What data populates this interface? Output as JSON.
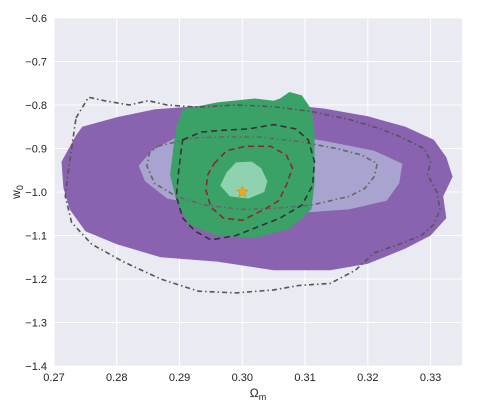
{
  "chart_data": {
    "type": "contour",
    "title": "",
    "xlabel": "Ωm",
    "ylabel": "w0",
    "xlim": [
      0.27,
      0.335
    ],
    "ylim": [
      -1.4,
      -0.6
    ],
    "xticks": [
      "0.27",
      "0.28",
      "0.29",
      "0.30",
      "0.31",
      "0.32",
      "0.33"
    ],
    "yticks": [
      "−0.6",
      "−0.7",
      "−0.8",
      "−0.9",
      "−1.0",
      "−1.1",
      "−1.2",
      "−1.3",
      "−1.4"
    ],
    "grid": true,
    "background": "#eaeaf2",
    "legend": "none",
    "fiducial_marker": {
      "x": 0.3,
      "y": -1.0,
      "symbol": "star",
      "color": "#f0a818"
    },
    "series": [
      {
        "style": "filled",
        "color": "#8a63b0",
        "level": "outer",
        "points": [
          [
            0.2735,
            -0.87
          ],
          [
            0.2745,
            -0.85
          ],
          [
            0.28,
            -0.828
          ],
          [
            0.286,
            -0.81
          ],
          [
            0.295,
            -0.8
          ],
          [
            0.305,
            -0.796
          ],
          [
            0.313,
            -0.808
          ],
          [
            0.32,
            -0.826
          ],
          [
            0.326,
            -0.85
          ],
          [
            0.3305,
            -0.88
          ],
          [
            0.3325,
            -0.92
          ],
          [
            0.3335,
            -0.965
          ],
          [
            0.332,
            -1.01
          ],
          [
            0.3325,
            -1.06
          ],
          [
            0.33,
            -1.1
          ],
          [
            0.326,
            -1.13
          ],
          [
            0.32,
            -1.165
          ],
          [
            0.314,
            -1.18
          ],
          [
            0.305,
            -1.18
          ],
          [
            0.296,
            -1.16
          ],
          [
            0.287,
            -1.15
          ],
          [
            0.28,
            -1.12
          ],
          [
            0.275,
            -1.09
          ],
          [
            0.2725,
            -1.04
          ],
          [
            0.2715,
            -0.99
          ],
          [
            0.2712,
            -0.93
          ]
        ]
      },
      {
        "style": "filled",
        "color": "#a9a3d0",
        "level": "inner",
        "points": [
          [
            0.2855,
            -0.905
          ],
          [
            0.29,
            -0.87
          ],
          [
            0.298,
            -0.86
          ],
          [
            0.306,
            -0.865
          ],
          [
            0.314,
            -0.885
          ],
          [
            0.321,
            -0.905
          ],
          [
            0.3255,
            -0.935
          ],
          [
            0.325,
            -0.98
          ],
          [
            0.323,
            -1.02
          ],
          [
            0.317,
            -1.04
          ],
          [
            0.307,
            -1.05
          ],
          [
            0.297,
            -1.04
          ],
          [
            0.288,
            -1.015
          ],
          [
            0.2845,
            -0.975
          ],
          [
            0.2835,
            -0.94
          ]
        ]
      },
      {
        "style": "filled",
        "color": "#3aa267",
        "level": "outer",
        "points": [
          [
            0.2895,
            -0.85
          ],
          [
            0.2905,
            -0.81
          ],
          [
            0.296,
            -0.794
          ],
          [
            0.302,
            -0.785
          ],
          [
            0.305,
            -0.79
          ],
          [
            0.306,
            -0.785
          ],
          [
            0.3075,
            -0.77
          ],
          [
            0.3095,
            -0.778
          ],
          [
            0.311,
            -0.81
          ],
          [
            0.3115,
            -0.86
          ],
          [
            0.3115,
            -0.92
          ],
          [
            0.3115,
            -0.98
          ],
          [
            0.311,
            -1.04
          ],
          [
            0.3075,
            -1.085
          ],
          [
            0.302,
            -1.105
          ],
          [
            0.296,
            -1.1
          ],
          [
            0.2915,
            -1.075
          ],
          [
            0.2895,
            -1.02
          ],
          [
            0.2885,
            -0.96
          ],
          [
            0.289,
            -0.9
          ]
        ]
      },
      {
        "style": "filled",
        "color": "#8fd2b0",
        "level": "inner",
        "points": [
          [
            0.2975,
            -0.955
          ],
          [
            0.299,
            -0.932
          ],
          [
            0.3015,
            -0.93
          ],
          [
            0.303,
            -0.945
          ],
          [
            0.304,
            -0.975
          ],
          [
            0.3035,
            -1.0
          ],
          [
            0.301,
            -1.015
          ],
          [
            0.298,
            -1.01
          ],
          [
            0.2965,
            -0.985
          ]
        ]
      },
      {
        "style": "dash-dot",
        "color": "#555555",
        "level": "outer",
        "points": [
          [
            0.2735,
            -0.83
          ],
          [
            0.2755,
            -0.782
          ],
          [
            0.278,
            -0.79
          ],
          [
            0.282,
            -0.8
          ],
          [
            0.285,
            -0.79
          ],
          [
            0.288,
            -0.8
          ],
          [
            0.293,
            -0.805
          ],
          [
            0.299,
            -0.8
          ],
          [
            0.305,
            -0.804
          ],
          [
            0.311,
            -0.815
          ],
          [
            0.317,
            -0.833
          ],
          [
            0.322,
            -0.855
          ],
          [
            0.325,
            -0.872
          ],
          [
            0.329,
            -0.9
          ],
          [
            0.33,
            -0.93
          ],
          [
            0.3295,
            -0.96
          ],
          [
            0.331,
            -1.0
          ],
          [
            0.3315,
            -1.04
          ],
          [
            0.3305,
            -1.075
          ],
          [
            0.3285,
            -1.1
          ],
          [
            0.325,
            -1.12
          ],
          [
            0.321,
            -1.14
          ],
          [
            0.318,
            -1.18
          ],
          [
            0.314,
            -1.21
          ],
          [
            0.309,
            -1.215
          ],
          [
            0.305,
            -1.225
          ],
          [
            0.299,
            -1.232
          ],
          [
            0.293,
            -1.228
          ],
          [
            0.287,
            -1.2
          ],
          [
            0.281,
            -1.16
          ],
          [
            0.276,
            -1.12
          ],
          [
            0.2728,
            -1.07
          ],
          [
            0.2718,
            -1.01
          ],
          [
            0.2722,
            -0.96
          ],
          [
            0.2728,
            -0.9
          ],
          [
            0.2732,
            -0.86
          ]
        ]
      },
      {
        "style": "dash-dot",
        "color": "#666666",
        "level": "inner",
        "points": [
          [
            0.2865,
            -0.895
          ],
          [
            0.292,
            -0.876
          ],
          [
            0.297,
            -0.873
          ],
          [
            0.303,
            -0.874
          ],
          [
            0.309,
            -0.884
          ],
          [
            0.315,
            -0.9
          ],
          [
            0.319,
            -0.915
          ],
          [
            0.3215,
            -0.935
          ],
          [
            0.321,
            -0.965
          ],
          [
            0.3195,
            -0.992
          ],
          [
            0.317,
            -1.01
          ],
          [
            0.311,
            -1.03
          ],
          [
            0.305,
            -1.038
          ],
          [
            0.3,
            -1.04
          ],
          [
            0.294,
            -1.03
          ],
          [
            0.2895,
            -1.01
          ],
          [
            0.286,
            -0.98
          ],
          [
            0.2848,
            -0.94
          ],
          [
            0.2852,
            -0.91
          ]
        ]
      },
      {
        "style": "dashed",
        "color": "#333333",
        "level": "outer",
        "points": [
          [
            0.2905,
            -0.88
          ],
          [
            0.2935,
            -0.862
          ],
          [
            0.297,
            -0.858
          ],
          [
            0.301,
            -0.855
          ],
          [
            0.305,
            -0.845
          ],
          [
            0.3085,
            -0.855
          ],
          [
            0.3105,
            -0.88
          ],
          [
            0.3115,
            -0.93
          ],
          [
            0.3112,
            -0.985
          ],
          [
            0.3095,
            -1.03
          ],
          [
            0.306,
            -1.06
          ],
          [
            0.3025,
            -1.08
          ],
          [
            0.299,
            -1.1
          ],
          [
            0.295,
            -1.11
          ],
          [
            0.2925,
            -1.09
          ],
          [
            0.2905,
            -1.06
          ],
          [
            0.2895,
            -1.01
          ],
          [
            0.2898,
            -0.96
          ],
          [
            0.2902,
            -0.91
          ]
        ]
      },
      {
        "style": "dashed",
        "color": "#8b2a2a",
        "level": "inner",
        "points": [
          [
            0.2955,
            -0.935
          ],
          [
            0.2975,
            -0.905
          ],
          [
            0.3005,
            -0.895
          ],
          [
            0.3045,
            -0.895
          ],
          [
            0.307,
            -0.915
          ],
          [
            0.308,
            -0.945
          ],
          [
            0.307,
            -0.985
          ],
          [
            0.3058,
            -1.02
          ],
          [
            0.3035,
            -1.04
          ],
          [
            0.3,
            -1.065
          ],
          [
            0.297,
            -1.06
          ],
          [
            0.295,
            -1.035
          ],
          [
            0.2942,
            -0.995
          ],
          [
            0.2945,
            -0.96
          ]
        ]
      }
    ]
  }
}
